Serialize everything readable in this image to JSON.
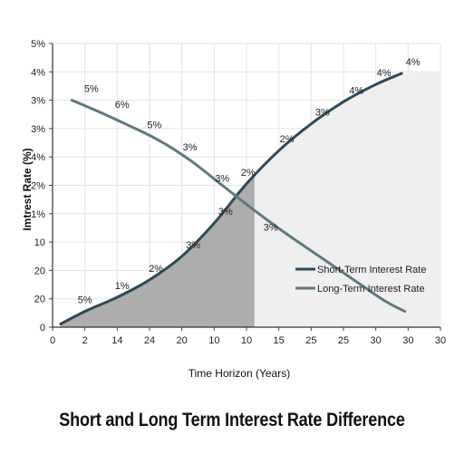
{
  "chart_data": {
    "type": "line",
    "title": "Short and Long Term Interest Rate Difference",
    "xlabel": "Time Horizon (Years)",
    "ylabel": "Imtrest Rate (%)",
    "x_tick_labels": [
      "0",
      "2",
      "14",
      "24",
      "20",
      "10",
      "10",
      "15",
      "25",
      "25",
      "30",
      "30",
      "30"
    ],
    "y_tick_labels": [
      "0",
      "20",
      "20",
      "10",
      "1%",
      "2%",
      "4%",
      "3%",
      "3%",
      "4%",
      "5%"
    ],
    "grid": true,
    "legend_position": "center-right",
    "series": [
      {
        "name": "Short-Term Interest Rate",
        "color": "#2f4a58",
        "x": [
          0.5,
          2,
          4,
          6,
          8,
          10,
          12,
          14,
          16,
          18,
          20,
          21.6
        ],
        "y": [
          0.1,
          0.5,
          0.95,
          1.5,
          2.25,
          3.3,
          4.55,
          5.6,
          6.45,
          7.15,
          7.7,
          8.05
        ],
        "labels": [
          {
            "x": 2,
            "y": 0.5,
            "text": "5%"
          },
          {
            "x": 4.3,
            "y": 0.95,
            "text": "1%"
          },
          {
            "x": 6.4,
            "y": 1.5,
            "text": "2%"
          },
          {
            "x": 8.7,
            "y": 2.25,
            "text": "3%"
          },
          {
            "x": 10.7,
            "y": 3.3,
            "text": "3%"
          },
          {
            "x": 12.1,
            "y": 4.55,
            "text": "2%"
          },
          {
            "x": 14.5,
            "y": 5.6,
            "text": "2%"
          },
          {
            "x": 16.7,
            "y": 6.45,
            "text": "3%"
          },
          {
            "x": 18.8,
            "y": 7.15,
            "text": "4%"
          },
          {
            "x": 20.5,
            "y": 7.7,
            "text": "4%"
          },
          {
            "x": 22.3,
            "y": 8.05,
            "text": "4%"
          }
        ]
      },
      {
        "name": "Long-Term Interest Rate",
        "color": "#5e7a80",
        "x": [
          1.2,
          2.8,
          4.5,
          6.5,
          8.5,
          10.5,
          12.5,
          14.5,
          16.5,
          18.5,
          20.5,
          21.8
        ],
        "y": [
          7.2,
          6.85,
          6.45,
          5.95,
          5.3,
          4.5,
          3.7,
          2.95,
          2.25,
          1.55,
          0.85,
          0.5
        ],
        "labels": [
          {
            "x": 2.4,
            "y": 7.2,
            "text": "5%"
          },
          {
            "x": 4.3,
            "y": 6.7,
            "text": "6%"
          },
          {
            "x": 6.3,
            "y": 6.05,
            "text": "5%"
          },
          {
            "x": 8.5,
            "y": 5.35,
            "text": "3%"
          },
          {
            "x": 10.5,
            "y": 4.35,
            "text": "3%"
          },
          {
            "x": 13.5,
            "y": 2.8,
            "text": "3%"
          }
        ]
      }
    ],
    "shaded_regions": [
      {
        "from_x": 0.5,
        "to_x": 12.5,
        "under": "Short-Term Interest Rate",
        "color": "#a9a9a9"
      },
      {
        "from_x": 12.5,
        "to_x": 24,
        "color": "#efefef"
      }
    ]
  }
}
